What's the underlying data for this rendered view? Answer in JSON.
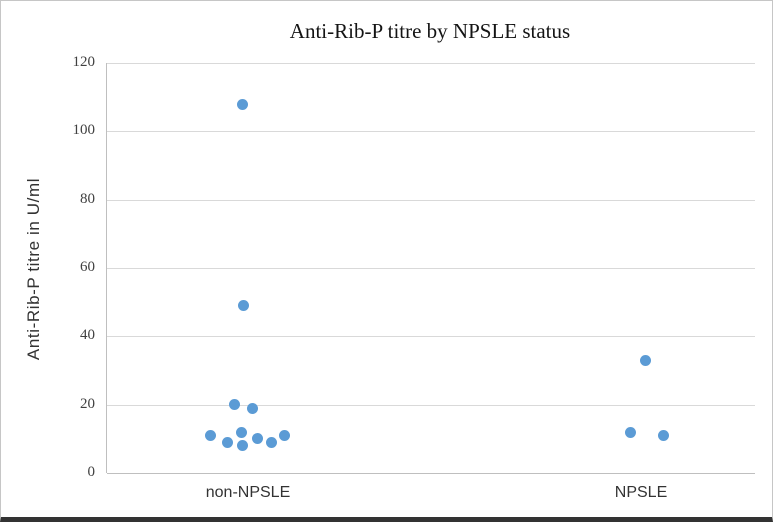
{
  "figure": {
    "border_color": "#c6c6c6",
    "bottom_bar_color": "#333333",
    "background": "#ffffff"
  },
  "chart_data": {
    "type": "scatter",
    "title": "Anti-Rib-P titre by NPSLE status",
    "ylabel": "Anti-Rib-P titre in U/ml",
    "xlabel": "",
    "categories": [
      "non-NPSLE",
      "NPSLE"
    ],
    "ylim": [
      0,
      120
    ],
    "yticks": [
      0,
      20,
      40,
      60,
      80,
      100,
      120
    ],
    "grid": true,
    "legend_position": "none",
    "marker_color": "#5B9BD5",
    "gridline_color": "#d9d9d9",
    "axis_line_color": "#bfbfbf",
    "series": [
      {
        "name": "non-NPSLE",
        "values": [
          108,
          49,
          20,
          19,
          12,
          11,
          11,
          10,
          9,
          9,
          8
        ],
        "points": [
          {
            "dx": -7,
            "v": 108
          },
          {
            "dx": -6,
            "v": 49
          },
          {
            "dx": -15,
            "v": 20
          },
          {
            "dx": 3,
            "v": 19
          },
          {
            "dx": -8,
            "v": 12
          },
          {
            "dx": -39,
            "v": 11
          },
          {
            "dx": 35,
            "v": 11
          },
          {
            "dx": 8,
            "v": 10
          },
          {
            "dx": -22,
            "v": 9
          },
          {
            "dx": 22,
            "v": 9
          },
          {
            "dx": -7,
            "v": 8
          }
        ]
      },
      {
        "name": "NPSLE",
        "values": [
          33,
          12,
          11
        ],
        "points": [
          {
            "dx": 3,
            "v": 33
          },
          {
            "dx": -12,
            "v": 12
          },
          {
            "dx": 21,
            "v": 11
          }
        ]
      }
    ]
  }
}
